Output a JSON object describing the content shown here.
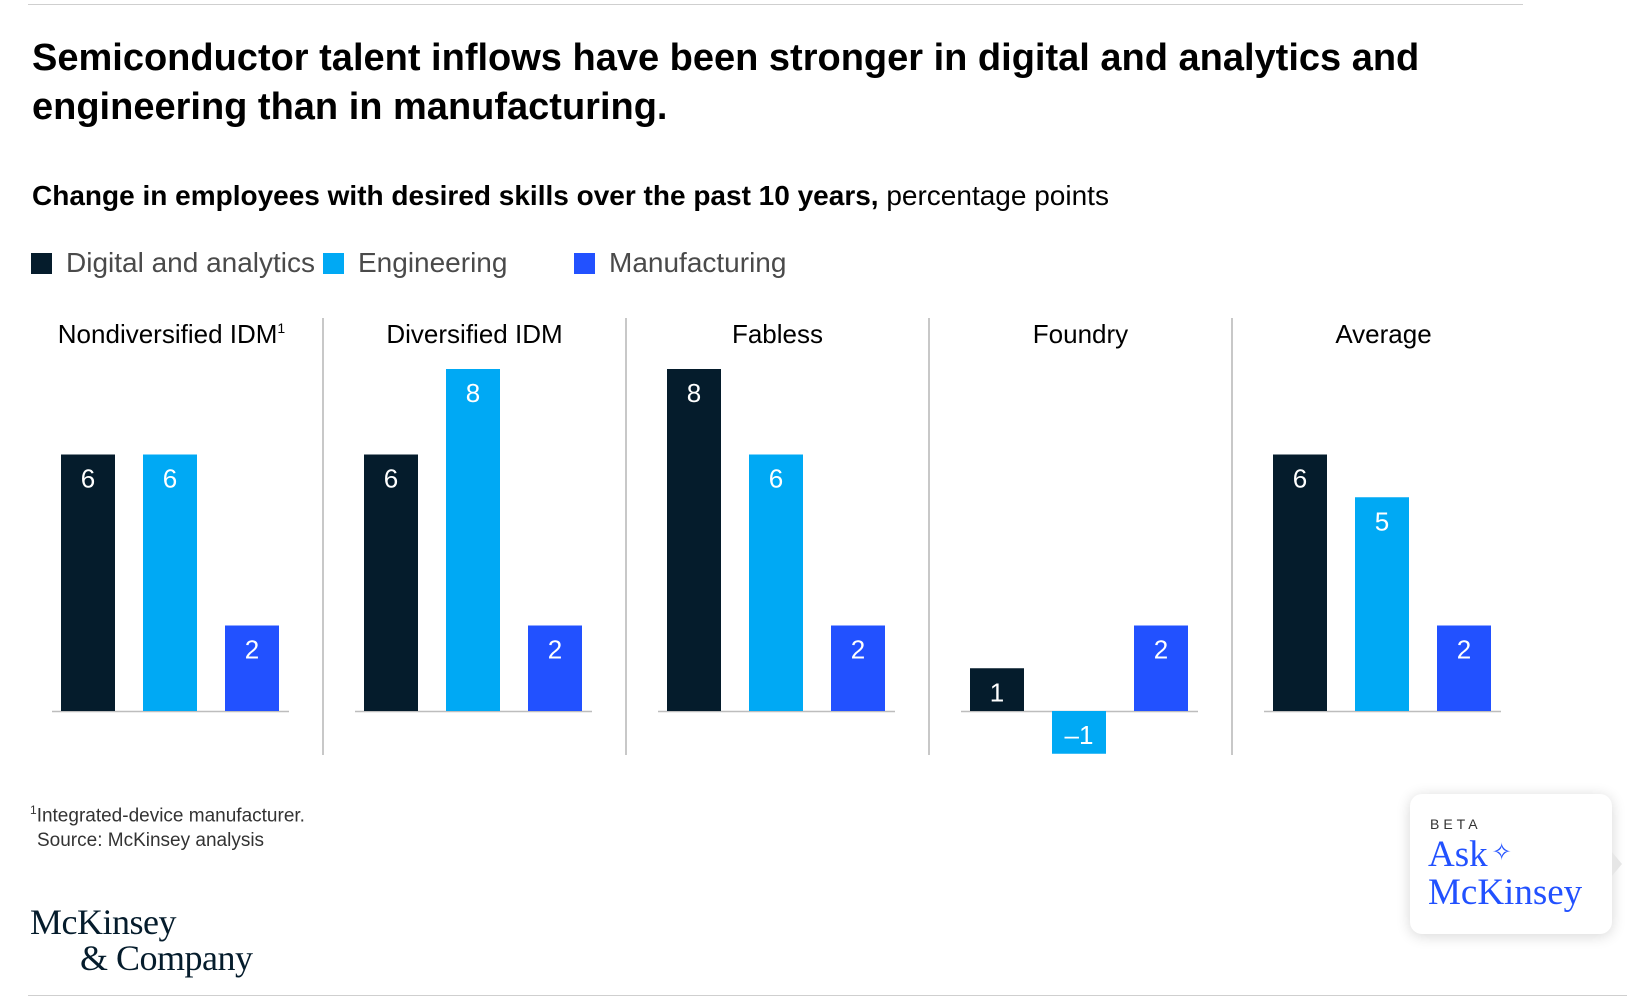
{
  "headline": "Semiconductor talent inflows have been stronger in digital and analytics and engineering than in manufacturing.",
  "subtitle": {
    "bold": "Change in employees with desired skills over the past 10 years,",
    "regular": " percentage points"
  },
  "legend": [
    {
      "label": "Digital and analytics",
      "color": "#051c2c"
    },
    {
      "label": "Engineering",
      "color": "#00a9f4"
    },
    {
      "label": "Manufacturing",
      "color": "#2251ff"
    }
  ],
  "chart_data": {
    "type": "bar",
    "series": [
      {
        "name": "Digital and analytics",
        "color": "#051c2c"
      },
      {
        "name": "Engineering",
        "color": "#00a9f4"
      },
      {
        "name": "Manufacturing",
        "color": "#2251ff"
      }
    ],
    "panels": [
      {
        "title": "Nondiversified IDM",
        "superscript": "1",
        "values": [
          6,
          6,
          2
        ]
      },
      {
        "title": "Diversified IDM",
        "superscript": "",
        "values": [
          6,
          8,
          2
        ]
      },
      {
        "title": "Fabless",
        "superscript": "",
        "values": [
          8,
          6,
          2
        ]
      },
      {
        "title": "Foundry",
        "superscript": "",
        "values": [
          1,
          -1,
          2
        ]
      },
      {
        "title": "Average",
        "superscript": "",
        "values": [
          6,
          5,
          2
        ]
      }
    ],
    "value_labels": [
      [
        "6",
        "6",
        "2"
      ],
      [
        "6",
        "8",
        "2"
      ],
      [
        "8",
        "6",
        "2"
      ],
      [
        "1",
        "–1",
        "2"
      ],
      [
        "6",
        "5",
        "2"
      ]
    ],
    "ylim": [
      -1,
      8
    ],
    "grid": false
  },
  "footnote": {
    "marker": "1",
    "note": "Integrated-device manufacturer.",
    "source": "Source: McKinsey analysis"
  },
  "logo": {
    "line1": "McKinsey",
    "line2": "& Company"
  },
  "ask_widget": {
    "beta": "BETA",
    "line1": "Ask",
    "spark": "✧",
    "line2": "McKinsey"
  }
}
